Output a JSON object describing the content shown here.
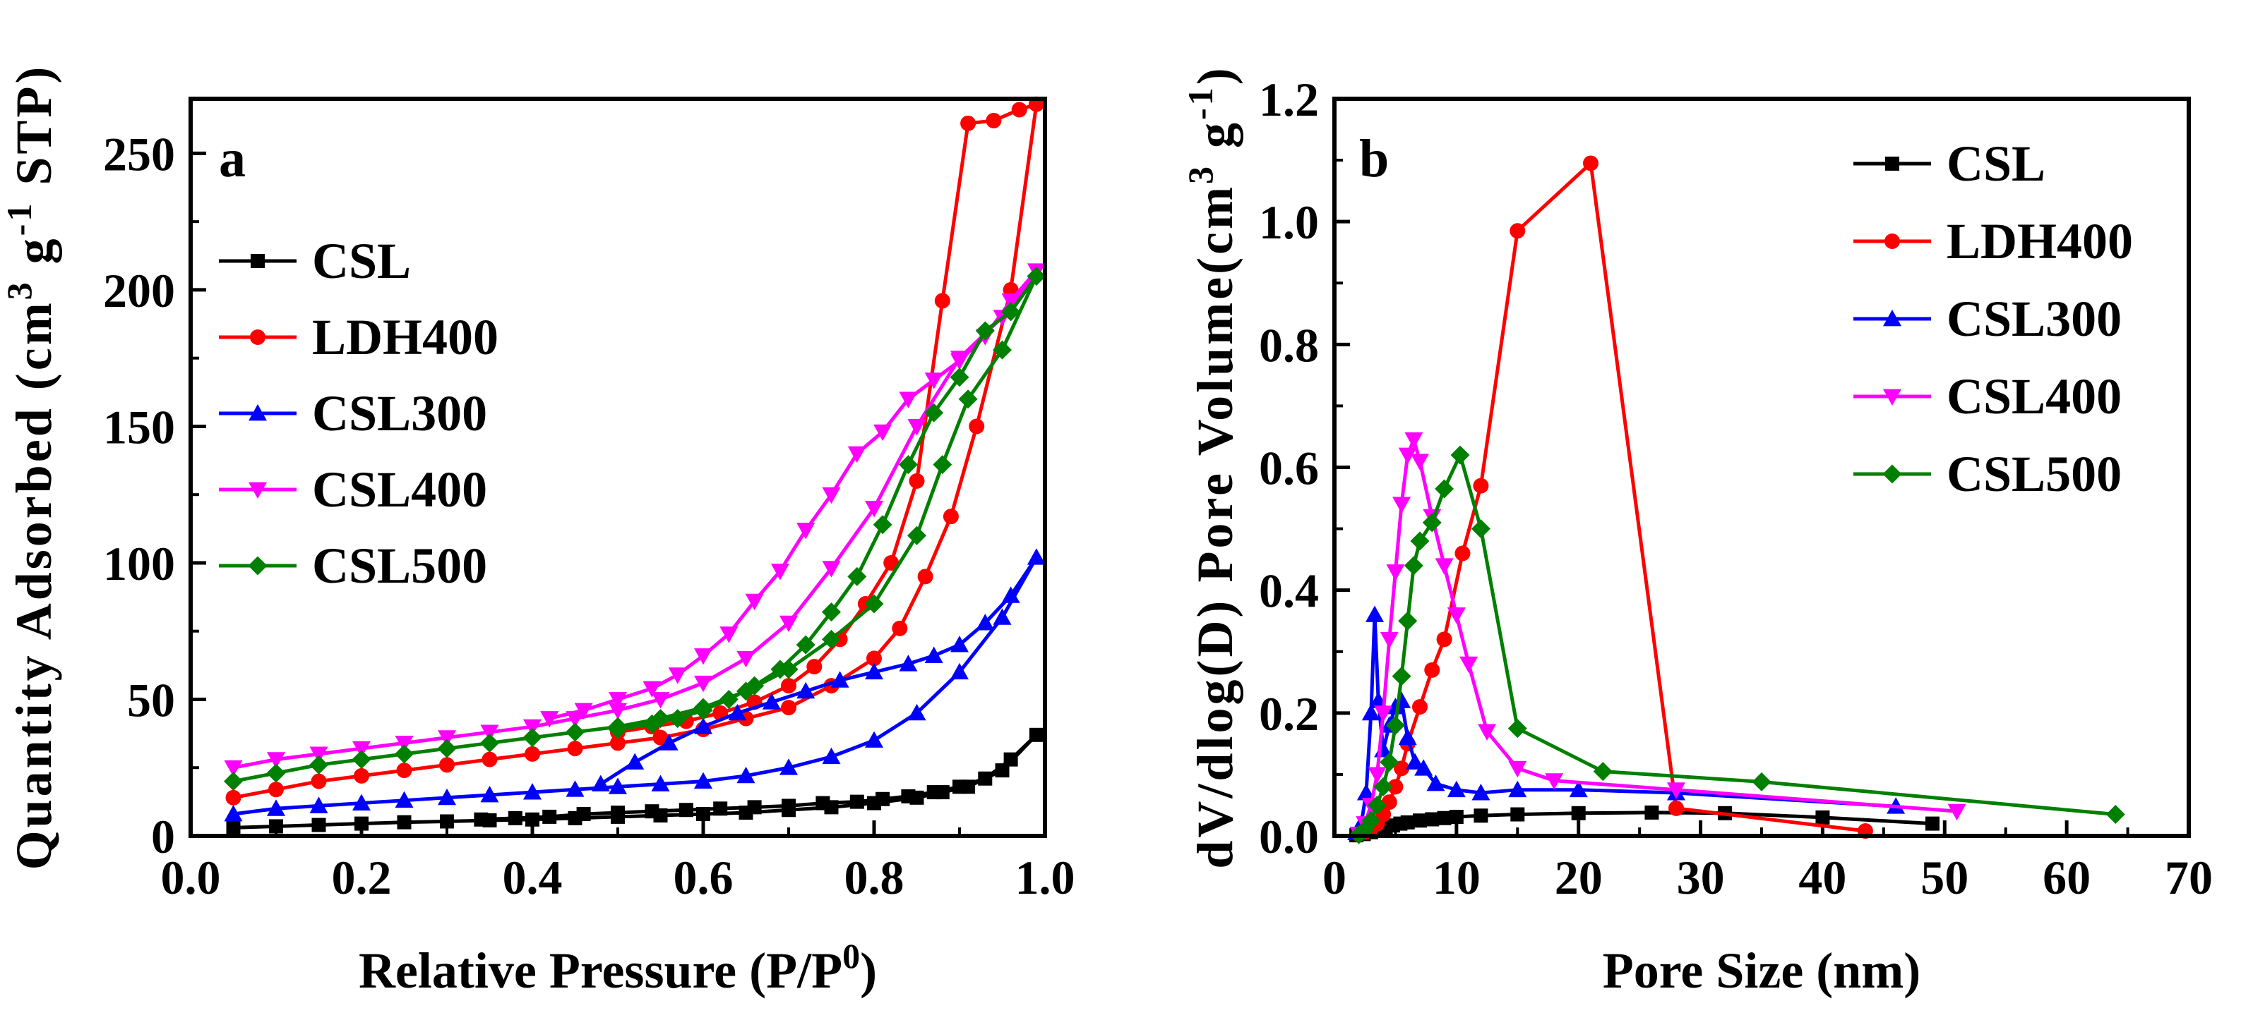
{
  "chart_data": [
    {
      "type": "line",
      "panel_label": "a",
      "xlabel": "Relative Pressure (P/P",
      "xlabel_sup": "0",
      "xlabel_close": ")",
      "ylabel": "Quantity Adsorbed (cm",
      "ylabel_sup1": "3",
      "ylabel_mid": " g",
      "ylabel_sup2": "-1",
      "ylabel_end": " STP)",
      "xlim": [
        0.0,
        1.0
      ],
      "ylim": [
        0,
        270
      ],
      "xticks": [
        "0.0",
        "0.2",
        "0.4",
        "0.6",
        "0.8",
        "1.0"
      ],
      "yticks": [
        "0",
        "50",
        "100",
        "150",
        "200",
        "250"
      ],
      "legend_position": "upper-left",
      "series": [
        {
          "name": "CSL",
          "color": "#000000",
          "marker": "square",
          "x": [
            0.05,
            0.1,
            0.15,
            0.2,
            0.25,
            0.3,
            0.35,
            0.4,
            0.45,
            0.5,
            0.55,
            0.6,
            0.65,
            0.7,
            0.75,
            0.8,
            0.85,
            0.88,
            0.91,
            0.95,
            0.99,
            0.96,
            0.93,
            0.9,
            0.87,
            0.84,
            0.81,
            0.78,
            0.74,
            0.7,
            0.66,
            0.62,
            0.58,
            0.54,
            0.5,
            0.46,
            0.42,
            0.38,
            0.34
          ],
          "y": [
            3,
            3.5,
            4,
            4.5,
            5,
            5.3,
            5.7,
            6,
            6.5,
            7,
            7.5,
            8,
            8.5,
            9.5,
            10.5,
            12,
            14,
            16,
            18,
            24,
            37,
            28,
            21,
            18,
            16,
            14.5,
            13.5,
            12.5,
            12,
            11,
            10.5,
            10,
            9.5,
            9,
            8.5,
            8,
            7,
            6.5,
            6
          ]
        },
        {
          "name": "LDH400",
          "color": "#ff0000",
          "marker": "circle",
          "x": [
            0.05,
            0.1,
            0.15,
            0.2,
            0.25,
            0.3,
            0.35,
            0.4,
            0.45,
            0.5,
            0.55,
            0.6,
            0.65,
            0.7,
            0.75,
            0.8,
            0.83,
            0.86,
            0.89,
            0.92,
            0.96,
            0.99,
            0.97,
            0.94,
            0.91,
            0.88,
            0.85,
            0.82,
            0.79,
            0.76,
            0.73,
            0.7,
            0.66,
            0.62,
            0.58,
            0.54,
            0.5
          ],
          "y": [
            14,
            17,
            20,
            22,
            24,
            26,
            28,
            30,
            32,
            34,
            36,
            39,
            43,
            47,
            55,
            65,
            76,
            95,
            117,
            150,
            200,
            268,
            266,
            262,
            261,
            196,
            130,
            100,
            85,
            72,
            62,
            55,
            49,
            45,
            42,
            40,
            38
          ]
        },
        {
          "name": "CSL300",
          "color": "#0000ff",
          "marker": "triangle-up",
          "x": [
            0.05,
            0.1,
            0.15,
            0.2,
            0.25,
            0.3,
            0.35,
            0.4,
            0.45,
            0.5,
            0.55,
            0.6,
            0.65,
            0.7,
            0.75,
            0.8,
            0.85,
            0.9,
            0.95,
            0.99,
            0.96,
            0.93,
            0.9,
            0.87,
            0.84,
            0.8,
            0.76,
            0.72,
            0.68,
            0.64,
            0.6,
            0.56,
            0.52,
            0.48
          ],
          "y": [
            8,
            10,
            11,
            12,
            13,
            14,
            15,
            16,
            17,
            18,
            19,
            20,
            22,
            25,
            29,
            35,
            45,
            60,
            80,
            102,
            88,
            78,
            70,
            66,
            63,
            60,
            57,
            53,
            49,
            45,
            40,
            34,
            27,
            19
          ]
        },
        {
          "name": "CSL400",
          "color": "#ff00ff",
          "marker": "triangle-down",
          "x": [
            0.05,
            0.1,
            0.15,
            0.2,
            0.25,
            0.3,
            0.35,
            0.4,
            0.45,
            0.5,
            0.55,
            0.6,
            0.65,
            0.7,
            0.75,
            0.8,
            0.85,
            0.9,
            0.95,
            0.99,
            0.96,
            0.93,
            0.9,
            0.87,
            0.84,
            0.81,
            0.78,
            0.75,
            0.72,
            0.69,
            0.66,
            0.63,
            0.6,
            0.57,
            0.54,
            0.5,
            0.46,
            0.42
          ],
          "y": [
            25,
            28,
            30,
            32,
            34,
            36,
            38,
            40,
            43,
            46,
            50,
            56,
            65,
            78,
            98,
            120,
            150,
            175,
            190,
            207,
            196,
            183,
            174,
            167,
            160,
            148,
            140,
            125,
            112,
            97,
            86,
            74,
            66,
            59,
            54,
            50,
            46,
            43
          ]
        },
        {
          "name": "CSL500",
          "color": "#008000",
          "marker": "diamond",
          "x": [
            0.05,
            0.1,
            0.15,
            0.2,
            0.25,
            0.3,
            0.35,
            0.4,
            0.45,
            0.5,
            0.55,
            0.6,
            0.65,
            0.7,
            0.75,
            0.8,
            0.85,
            0.88,
            0.91,
            0.95,
            0.99,
            0.96,
            0.93,
            0.9,
            0.87,
            0.84,
            0.81,
            0.78,
            0.75,
            0.72,
            0.69,
            0.66,
            0.63,
            0.6,
            0.57,
            0.54,
            0.5
          ],
          "y": [
            20,
            23,
            26,
            28,
            30,
            32,
            34,
            36,
            38,
            40,
            43,
            47,
            53,
            61,
            72,
            85,
            110,
            136,
            160,
            178,
            205,
            192,
            185,
            168,
            155,
            136,
            114,
            95,
            82,
            70,
            61,
            55,
            50,
            46,
            43,
            41,
            39
          ]
        }
      ]
    },
    {
      "type": "line",
      "panel_label": "b",
      "xlabel": "Pore Size (nm)",
      "ylabel": "dV/dlog(D) Pore Volume(cm",
      "ylabel_sup1": "3",
      "ylabel_mid": " g",
      "ylabel_sup2": "-1",
      "ylabel_end": ")",
      "xlim": [
        0,
        70
      ],
      "ylim": [
        0.0,
        1.2
      ],
      "xticks": [
        "0",
        "10",
        "20",
        "30",
        "40",
        "50",
        "60",
        "70"
      ],
      "yticks": [
        "0.0",
        "0.2",
        "0.4",
        "0.6",
        "0.8",
        "1.0",
        "1.2"
      ],
      "legend_position": "upper-right",
      "series": [
        {
          "name": "CSL",
          "color": "#000000",
          "marker": "square",
          "x": [
            1.8,
            2.4,
            3.0,
            3.6,
            4.2,
            4.8,
            5.4,
            6.0,
            7.0,
            8.0,
            9.0,
            10.0,
            12.0,
            15.0,
            20.0,
            26.0,
            32.0,
            40.0,
            49.0
          ],
          "y": [
            0.001,
            0.003,
            0.006,
            0.01,
            0.014,
            0.017,
            0.02,
            0.022,
            0.025,
            0.027,
            0.029,
            0.031,
            0.033,
            0.035,
            0.037,
            0.038,
            0.037,
            0.03,
            0.02
          ]
        },
        {
          "name": "LDH400",
          "color": "#ff0000",
          "marker": "circle",
          "x": [
            2.0,
            2.5,
            3.0,
            3.5,
            4.0,
            4.5,
            5.0,
            5.5,
            6.0,
            7.0,
            8.0,
            9.0,
            10.5,
            12.0,
            15.0,
            21.0,
            28.0,
            43.5
          ],
          "y": [
            0.003,
            0.006,
            0.012,
            0.02,
            0.035,
            0.055,
            0.08,
            0.11,
            0.15,
            0.21,
            0.27,
            0.32,
            0.46,
            0.57,
            0.985,
            1.095,
            0.045,
            0.008
          ]
        },
        {
          "name": "CSL300",
          "color": "#0000ff",
          "marker": "triangle-up",
          "x": [
            1.8,
            2.2,
            2.6,
            3.0,
            3.3,
            3.6,
            4.0,
            4.5,
            5.0,
            5.5,
            6.0,
            6.6,
            7.3,
            8.3,
            10.0,
            12.0,
            15.0,
            20.0,
            28.0,
            46.0
          ],
          "y": [
            0.005,
            0.02,
            0.07,
            0.2,
            0.36,
            0.22,
            0.14,
            0.18,
            0.21,
            0.22,
            0.16,
            0.12,
            0.11,
            0.085,
            0.075,
            0.07,
            0.075,
            0.075,
            0.07,
            0.048
          ]
        },
        {
          "name": "CSL400",
          "color": "#ff00ff",
          "marker": "triangle-down",
          "x": [
            2.0,
            2.5,
            3.0,
            3.5,
            4.0,
            4.5,
            5.0,
            5.5,
            6.0,
            6.5,
            7.0,
            8.0,
            9.0,
            10.0,
            11.0,
            12.5,
            15.0,
            18.0,
            28.0,
            51.0
          ],
          "y": [
            0.003,
            0.02,
            0.05,
            0.1,
            0.2,
            0.32,
            0.43,
            0.54,
            0.62,
            0.645,
            0.61,
            0.52,
            0.44,
            0.36,
            0.28,
            0.17,
            0.11,
            0.09,
            0.075,
            0.04
          ]
        },
        {
          "name": "CSL500",
          "color": "#008000",
          "marker": "diamond",
          "x": [
            2.0,
            2.5,
            3.0,
            3.5,
            4.0,
            4.5,
            5.0,
            5.5,
            6.0,
            6.5,
            7.0,
            8.0,
            9.0,
            10.3,
            12.0,
            15.0,
            22.0,
            35.0,
            64.0
          ],
          "y": [
            0.002,
            0.01,
            0.025,
            0.05,
            0.08,
            0.12,
            0.18,
            0.26,
            0.35,
            0.44,
            0.48,
            0.51,
            0.565,
            0.62,
            0.5,
            0.175,
            0.105,
            0.088,
            0.035
          ]
        }
      ]
    }
  ]
}
